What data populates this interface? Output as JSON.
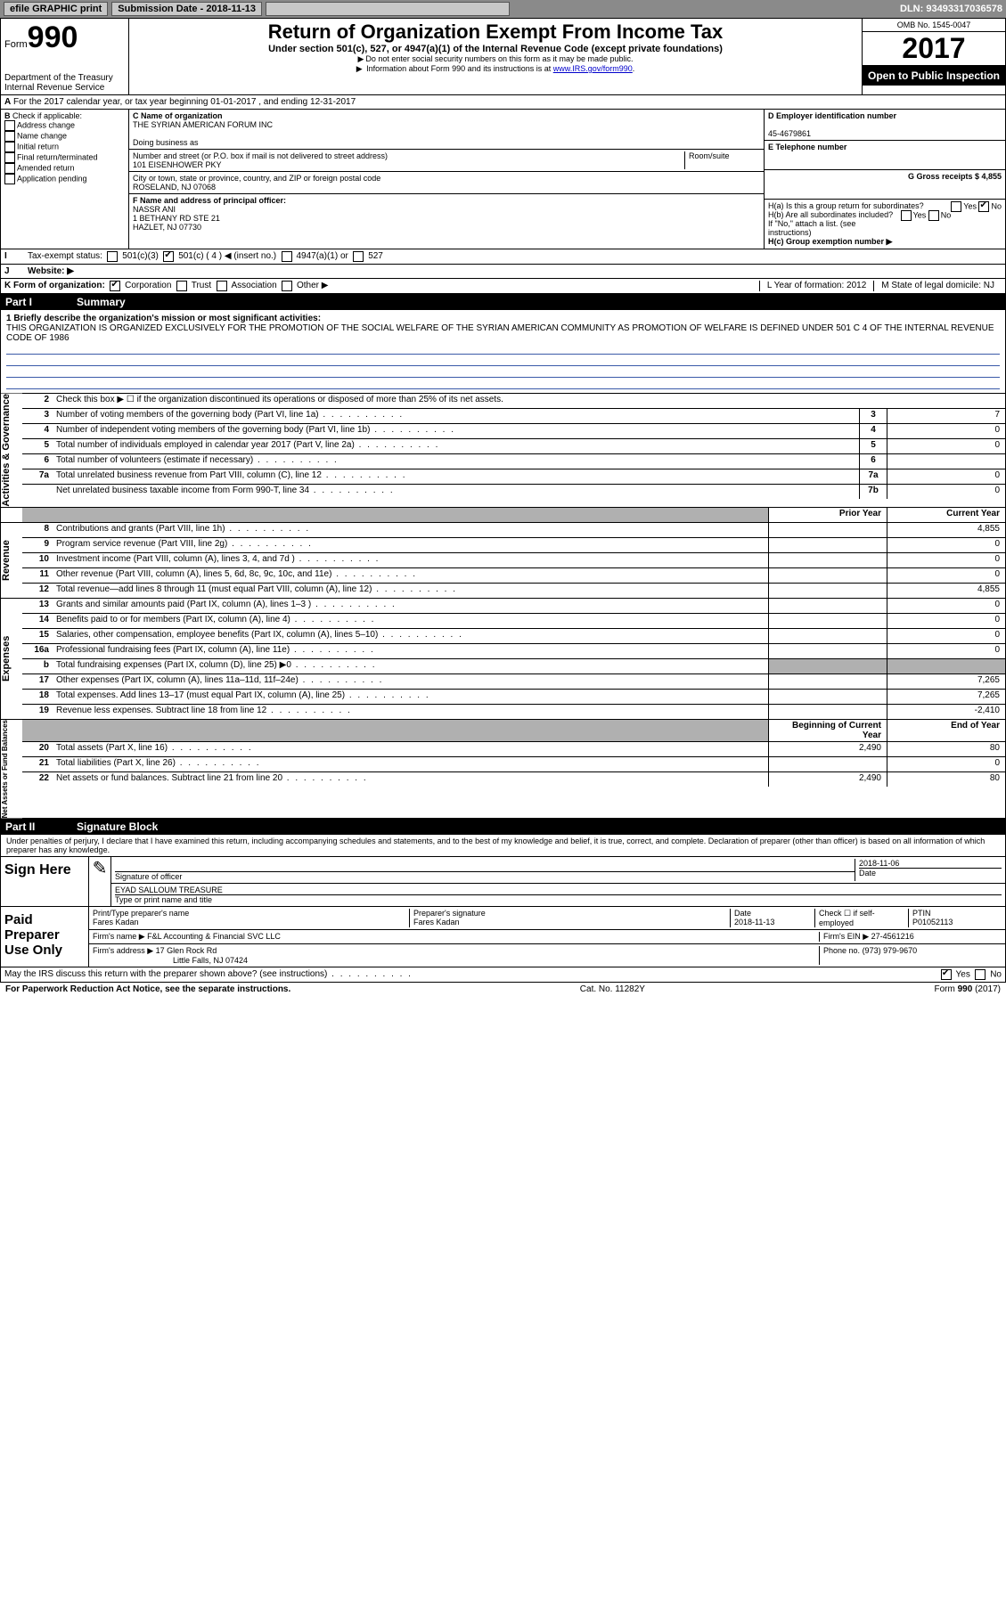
{
  "topbar": {
    "efile": "efile GRAPHIC print",
    "submission_label": "Submission Date - 2018-11-13",
    "dln": "DLN: 93493317036578"
  },
  "header": {
    "form_label": "Form",
    "form_number": "990",
    "dept1": "Department of the Treasury",
    "dept2": "Internal Revenue Service",
    "title": "Return of Organization Exempt From Income Tax",
    "subtitle": "Under section 501(c), 527, or 4947(a)(1) of the Internal Revenue Code (except private foundations)",
    "note1": "Do not enter social security numbers on this form as it may be made public.",
    "note2_pre": "Information about Form 990 and its instructions is at ",
    "note2_link": "www.IRS.gov/form990",
    "omb": "OMB No. 1545-0047",
    "year": "2017",
    "open": "Open to Public Inspection"
  },
  "periodA": "For the 2017 calendar year, or tax year beginning 01-01-2017   , and ending 12-31-2017",
  "checkB": {
    "title": "Check if applicable:",
    "items": [
      "Address change",
      "Name change",
      "Initial return",
      "Final return/terminated",
      "Amended return",
      "Application pending"
    ]
  },
  "entity": {
    "c_name_label": "C Name of organization",
    "c_name": "THE SYRIAN AMERICAN FORUM INC",
    "dba_label": "Doing business as",
    "addr_label": "Number and street (or P.O. box if mail is not delivered to street address)",
    "room_label": "Room/suite",
    "addr": "101 EISENHOWER PKY",
    "city_label": "City or town, state or province, country, and ZIP or foreign postal code",
    "city": "ROSELAND, NJ  07068",
    "f_label": "F  Name and address of principal officer:",
    "f_name": "NASSR ANI",
    "f_addr1": "1 BETHANY RD STE 21",
    "f_addr2": "HAZLET, NJ  07730"
  },
  "right": {
    "d_label": "D Employer identification number",
    "d_val": "45-4679861",
    "e_label": "E Telephone number",
    "g_label": "G Gross receipts $ 4,855",
    "ha_label": "H(a)  Is this a group return for subordinates?",
    "hb_label": "H(b)  Are all subordinates included?",
    "h_note": "If \"No,\" attach a list. (see instructions)",
    "hc_label": "H(c)  Group exemption number ▶",
    "yes": "Yes",
    "no": "No"
  },
  "rowI": {
    "label": "Tax-exempt status:",
    "opts": [
      "501(c)(3)",
      "501(c) ( 4 ) ◀ (insert no.)",
      "4947(a)(1) or",
      "527"
    ]
  },
  "rowJ_label": "Website: ▶",
  "rowK": {
    "label": "K Form of organization:",
    "opts": [
      "Corporation",
      "Trust",
      "Association",
      "Other ▶"
    ],
    "L": "L Year of formation: 2012",
    "M": "M State of legal domicile: NJ"
  },
  "partI": {
    "label": "Part I",
    "title": "Summary"
  },
  "mission": {
    "label": "1  Briefly describe the organization's mission or most significant activities:",
    "text": "THIS ORGANIZATION IS ORGANIZED EXCLUSIVELY FOR THE PROMOTION OF THE SOCIAL WELFARE OF THE SYRIAN AMERICAN COMMUNITY AS PROMOTION OF WELFARE IS DEFINED UNDER 501 C 4 OF THE INTERNAL REVENUE CODE OF 1986"
  },
  "gov": {
    "side": "Activities & Governance",
    "l2": "Check this box ▶ ☐  if the organization discontinued its operations or disposed of more than 25% of its net assets.",
    "rows": [
      {
        "n": "3",
        "d": "Number of voting members of the governing body (Part VI, line 1a)",
        "b": "3",
        "v": "7"
      },
      {
        "n": "4",
        "d": "Number of independent voting members of the governing body (Part VI, line 1b)",
        "b": "4",
        "v": "0"
      },
      {
        "n": "5",
        "d": "Total number of individuals employed in calendar year 2017 (Part V, line 2a)",
        "b": "5",
        "v": "0"
      },
      {
        "n": "6",
        "d": "Total number of volunteers (estimate if necessary)",
        "b": "6",
        "v": ""
      },
      {
        "n": "7a",
        "d": "Total unrelated business revenue from Part VIII, column (C), line 12",
        "b": "7a",
        "v": "0"
      },
      {
        "n": "",
        "d": "Net unrelated business taxable income from Form 990-T, line 34",
        "b": "7b",
        "v": "0"
      }
    ]
  },
  "yearhdr": {
    "prior": "Prior Year",
    "current": "Current Year"
  },
  "rev": {
    "side": "Revenue",
    "rows": [
      {
        "n": "8",
        "d": "Contributions and grants (Part VIII, line 1h)",
        "p": "",
        "c": "4,855"
      },
      {
        "n": "9",
        "d": "Program service revenue (Part VIII, line 2g)",
        "p": "",
        "c": "0"
      },
      {
        "n": "10",
        "d": "Investment income (Part VIII, column (A), lines 3, 4, and 7d )",
        "p": "",
        "c": "0"
      },
      {
        "n": "11",
        "d": "Other revenue (Part VIII, column (A), lines 5, 6d, 8c, 9c, 10c, and 11e)",
        "p": "",
        "c": "0"
      },
      {
        "n": "12",
        "d": "Total revenue—add lines 8 through 11 (must equal Part VIII, column (A), line 12)",
        "p": "",
        "c": "4,855"
      }
    ]
  },
  "exp": {
    "side": "Expenses",
    "rows": [
      {
        "n": "13",
        "d": "Grants and similar amounts paid (Part IX, column (A), lines 1–3 )",
        "p": "",
        "c": "0"
      },
      {
        "n": "14",
        "d": "Benefits paid to or for members (Part IX, column (A), line 4)",
        "p": "",
        "c": "0"
      },
      {
        "n": "15",
        "d": "Salaries, other compensation, employee benefits (Part IX, column (A), lines 5–10)",
        "p": "",
        "c": "0"
      },
      {
        "n": "16a",
        "d": "Professional fundraising fees (Part IX, column (A), line 11e)",
        "p": "",
        "c": "0"
      },
      {
        "n": "b",
        "d": "Total fundraising expenses (Part IX, column (D), line 25) ▶0",
        "p": "shaded",
        "c": "shaded"
      },
      {
        "n": "17",
        "d": "Other expenses (Part IX, column (A), lines 11a–11d, 11f–24e)",
        "p": "",
        "c": "7,265"
      },
      {
        "n": "18",
        "d": "Total expenses. Add lines 13–17 (must equal Part IX, column (A), line 25)",
        "p": "",
        "c": "7,265"
      },
      {
        "n": "19",
        "d": "Revenue less expenses. Subtract line 18 from line 12",
        "p": "",
        "c": "-2,410"
      }
    ]
  },
  "net": {
    "side": "Net Assets or Fund Balances",
    "hdr_begin": "Beginning of Current Year",
    "hdr_end": "End of Year",
    "rows": [
      {
        "n": "20",
        "d": "Total assets (Part X, line 16)",
        "p": "2,490",
        "c": "80"
      },
      {
        "n": "21",
        "d": "Total liabilities (Part X, line 26)",
        "p": "",
        "c": "0"
      },
      {
        "n": "22",
        "d": "Net assets or fund balances. Subtract line 21 from line 20",
        "p": "2,490",
        "c": "80"
      }
    ]
  },
  "partII": {
    "label": "Part II",
    "title": "Signature Block"
  },
  "jurat": "Under penalties of perjury, I declare that I have examined this return, including accompanying schedules and statements, and to the best of my knowledge and belief, it is true, correct, and complete. Declaration of preparer (other than officer) is based on all information of which preparer has any knowledge.",
  "sign": {
    "here": "Sign Here",
    "sig_label": "Signature of officer",
    "date_label": "Date",
    "date": "2018-11-06",
    "name": "EYAD SALLOUM TREASURE",
    "type_label": "Type or print name and title"
  },
  "paid": {
    "here": "Paid Preparer Use Only",
    "col1": "Print/Type preparer's name",
    "col1v": "Fares Kadan",
    "col2": "Preparer's signature",
    "col2v": "Fares Kadan",
    "col3": "Date",
    "col3v": "2018-11-13",
    "col4": "Check ☐ if self-employed",
    "col5": "PTIN",
    "col5v": "P01052113",
    "firm_name_l": "Firm's name    ▶",
    "firm_name": "F&L Accounting & Financial SVC LLC",
    "firm_ein_l": "Firm's EIN ▶",
    "firm_ein": "27-4561216",
    "firm_addr_l": "Firm's address ▶",
    "firm_addr1": "17 Glen Rock Rd",
    "firm_addr2": "Little Falls, NJ  07424",
    "phone_l": "Phone no.",
    "phone": "(973) 979-9670"
  },
  "discuss": "May the IRS discuss this return with the preparer shown above? (see instructions)",
  "footer": {
    "pra": "For Paperwork Reduction Act Notice, see the separate instructions.",
    "cat": "Cat. No. 11282Y",
    "form": "Form 990 (2017)"
  }
}
